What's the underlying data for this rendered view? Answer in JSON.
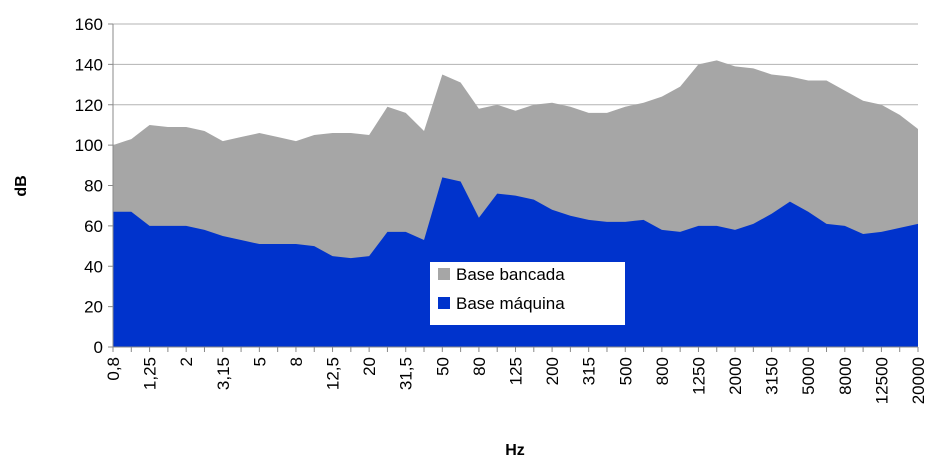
{
  "chart_data": {
    "type": "area",
    "ylabel": "dB",
    "xlabel": "Hz",
    "categories": [
      "0,8",
      null,
      "1,25",
      null,
      "2",
      null,
      "3,15",
      null,
      "5",
      null,
      "8",
      null,
      "12,5",
      null,
      "20",
      null,
      "31,5",
      null,
      "50",
      null,
      "80",
      null,
      "125",
      null,
      "200",
      null,
      "315",
      null,
      "500",
      null,
      "800",
      null,
      "1250",
      null,
      "2000",
      null,
      "3150",
      null,
      "5000",
      null,
      "8000",
      null,
      "12500",
      null,
      "20000"
    ],
    "series": [
      {
        "name": "Base bancada",
        "color": "#a6a6a6",
        "values": [
          100,
          103,
          110,
          109,
          109,
          107,
          102,
          104,
          106,
          104,
          102,
          105,
          106,
          106,
          105,
          119,
          116,
          107,
          135,
          131,
          118,
          120,
          117,
          120,
          121,
          119,
          116,
          116,
          119,
          121,
          124,
          129,
          140,
          142,
          139,
          138,
          135,
          134,
          132,
          132,
          127,
          122,
          120,
          115,
          108
        ]
      },
      {
        "name": "Base máquina",
        "color": "#0033cc",
        "values": [
          67,
          67,
          60,
          60,
          60,
          58,
          55,
          53,
          51,
          51,
          51,
          50,
          45,
          44,
          45,
          57,
          57,
          53,
          84,
          82,
          64,
          76,
          75,
          73,
          68,
          65,
          63,
          62,
          62,
          63,
          58,
          57,
          60,
          60,
          58,
          61,
          66,
          72,
          67,
          61,
          60,
          56,
          57,
          59,
          61
        ]
      }
    ],
    "ylim": [
      0,
      160
    ],
    "yticks": [
      0,
      20,
      40,
      60,
      80,
      100,
      120,
      140,
      160
    ],
    "grid": true,
    "legend": "center"
  }
}
